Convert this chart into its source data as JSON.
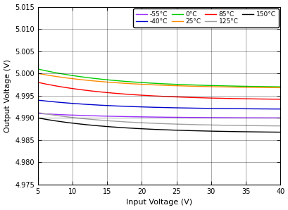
{
  "xlabel": "Input Voltage (V)",
  "ylabel": "Output Voltage (V)",
  "xlim": [
    5,
    40
  ],
  "ylim": [
    4.975,
    5.015
  ],
  "yticks": [
    4.975,
    4.98,
    4.985,
    4.99,
    4.995,
    5.0,
    5.005,
    5.01,
    5.015
  ],
  "xticks": [
    5,
    10,
    15,
    20,
    25,
    30,
    35,
    40
  ],
  "series": [
    {
      "label": "-55°C",
      "color": "#9B30FF",
      "y_start": 4.991,
      "y_end": 4.99
    },
    {
      "label": "-40°C",
      "color": "#0000CD",
      "y_start": 4.994,
      "y_end": 4.992
    },
    {
      "label": "0°C",
      "color": "#00CC00",
      "y_start": 5.001,
      "y_end": 4.997
    },
    {
      "label": "25°C",
      "color": "#FF8C00",
      "y_start": 5.0,
      "y_end": 4.9968
    },
    {
      "label": "85°C",
      "color": "#FF0000",
      "y_start": 4.998,
      "y_end": 4.9942
    },
    {
      "label": "125°C",
      "color": "#A0A0A0",
      "y_start": 4.9912,
      "y_end": 4.9882
    },
    {
      "label": "150°C",
      "color": "#000000",
      "y_start": 4.99,
      "y_end": 4.9868
    }
  ]
}
